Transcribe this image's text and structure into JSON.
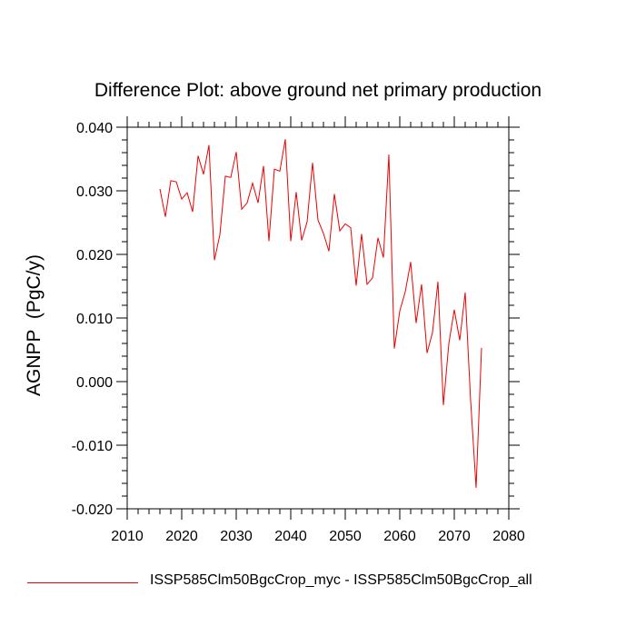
{
  "chart_data": {
    "type": "line",
    "title": "Difference Plot: above ground net primary production",
    "xlabel": "",
    "ylabel": "AGNPP  (PgC/y)",
    "xlim": [
      2010,
      2080
    ],
    "ylim": [
      -0.02,
      0.04
    ],
    "xticks": [
      "2010",
      "2020",
      "2030",
      "2040",
      "2050",
      "2060",
      "2070",
      "2080"
    ],
    "yticks": [
      "-0.020",
      "-0.010",
      "0.000",
      "0.010",
      "0.020",
      "0.030",
      "0.040"
    ],
    "grid": false,
    "legend": "bottom",
    "series": [
      {
        "name": "ISSP585Clm50BgcCrop_myc - ISSP585Clm50BgcCrop_all",
        "color": "#ee0000",
        "x": [
          2016,
          2017,
          2018,
          2019,
          2020,
          2021,
          2022,
          2023,
          2024,
          2025,
          2026,
          2027,
          2028,
          2029,
          2030,
          2031,
          2032,
          2033,
          2034,
          2035,
          2036,
          2037,
          2038,
          2039,
          2040,
          2041,
          2042,
          2043,
          2044,
          2045,
          2046,
          2047,
          2048,
          2049,
          2050,
          2051,
          2052,
          2053,
          2054,
          2055,
          2056,
          2057,
          2058,
          2059,
          2060,
          2061,
          2062,
          2063,
          2064,
          2065,
          2066,
          2067,
          2068,
          2069,
          2070,
          2071,
          2072,
          2073,
          2074,
          2075
        ],
        "values": [
          0.0303,
          0.0259,
          0.0316,
          0.0314,
          0.0287,
          0.0297,
          0.0267,
          0.0355,
          0.0326,
          0.0372,
          0.0191,
          0.0231,
          0.0323,
          0.0321,
          0.0361,
          0.0271,
          0.0281,
          0.0312,
          0.0281,
          0.0339,
          0.0221,
          0.0334,
          0.0331,
          0.0381,
          0.0221,
          0.0298,
          0.0222,
          0.0251,
          0.0344,
          0.0254,
          0.0233,
          0.0205,
          0.0295,
          0.0237,
          0.0248,
          0.0242,
          0.0151,
          0.0232,
          0.0153,
          0.0163,
          0.0226,
          0.0195,
          0.0357,
          0.0052,
          0.0111,
          0.0141,
          0.0188,
          0.0092,
          0.0153,
          0.0045,
          0.0077,
          0.0157,
          -0.0037,
          0.006,
          0.0113,
          0.0065,
          0.014,
          -0.003,
          -0.0167,
          0.0053
        ]
      }
    ]
  }
}
